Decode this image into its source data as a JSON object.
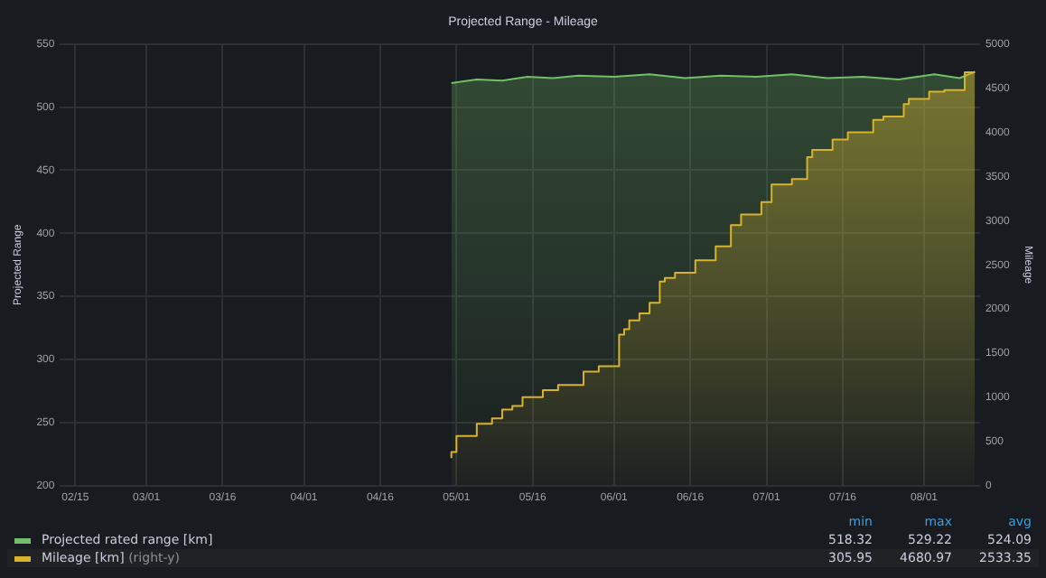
{
  "chart_data": {
    "type": "area",
    "title": "Projected Range - Mileage",
    "ylabel": "Projected Range",
    "y2label": "Mileage",
    "xlim": [
      "--02-12",
      "--08-12"
    ],
    "xticks": [
      {
        "value": "--02-15",
        "label": "02/15"
      },
      {
        "value": "--03-01",
        "label": "03/01"
      },
      {
        "value": "--03-16",
        "label": "03/16"
      },
      {
        "value": "--04-01",
        "label": "04/01"
      },
      {
        "value": "--04-16",
        "label": "04/16"
      },
      {
        "value": "--05-01",
        "label": "05/01"
      },
      {
        "value": "--05-16",
        "label": "05/16"
      },
      {
        "value": "--06-01",
        "label": "06/01"
      },
      {
        "value": "--06-16",
        "label": "06/16"
      },
      {
        "value": "--07-01",
        "label": "07/01"
      },
      {
        "value": "--07-16",
        "label": "07/16"
      },
      {
        "value": "--08-01",
        "label": "08/01"
      }
    ],
    "ylim": [
      200,
      550
    ],
    "yticks": [
      200,
      250,
      300,
      350,
      400,
      450,
      500,
      550
    ],
    "y2lim": [
      0,
      5000
    ],
    "y2ticks": [
      0,
      500,
      1000,
      1500,
      2000,
      2500,
      3000,
      3500,
      4000,
      4500,
      5000
    ],
    "grid": true,
    "legend": "bottom",
    "series": [
      {
        "name": "Projected rated range [km]",
        "color": "#73bf69",
        "x": [
          "--04-30",
          "--05-05",
          "--05-10",
          "--05-15",
          "--05-20",
          "--05-25",
          "--06-01",
          "--06-08",
          "--06-15",
          "--06-22",
          "--06-29",
          "--07-06",
          "--07-13",
          "--07-20",
          "--07-27",
          "--08-03",
          "--08-08",
          "--08-11"
        ],
        "values": [
          519,
          522,
          521,
          524,
          523,
          525,
          524,
          526,
          523,
          525,
          524,
          526,
          523,
          524,
          522,
          526,
          523,
          528
        ]
      },
      {
        "name": "Mileage [km]",
        "color": "#d9b22b",
        "axis": "y2",
        "type": "step",
        "x": [
          "--04-30",
          "--05-01",
          "--05-05",
          "--05-08",
          "--05-10",
          "--05-12",
          "--05-14",
          "--05-18",
          "--05-21",
          "--05-26",
          "--05-29",
          "--06-02",
          "--06-03",
          "--06-04",
          "--06-06",
          "--06-08",
          "--06-10",
          "--06-11",
          "--06-13",
          "--06-17",
          "--06-21",
          "--06-24",
          "--06-26",
          "--06-30",
          "--07-02",
          "--07-06",
          "--07-09",
          "--07-10",
          "--07-14",
          "--07-17",
          "--07-22",
          "--07-24",
          "--07-28",
          "--07-29",
          "--08-02",
          "--08-05",
          "--08-09",
          "--08-11"
        ],
        "values": [
          310,
          380,
          560,
          700,
          760,
          860,
          900,
          1000,
          1080,
          1140,
          1290,
          1350,
          1710,
          1770,
          1870,
          1950,
          2070,
          2310,
          2350,
          2410,
          2550,
          2710,
          2950,
          3070,
          3210,
          3410,
          3470,
          3720,
          3800,
          3920,
          4000,
          4140,
          4180,
          4320,
          4380,
          4460,
          4480,
          4680
        ]
      }
    ],
    "annotations": [
      "min",
      "max",
      "avg",
      "518.32",
      "529.22",
      "524.09",
      "305.95",
      "4680.97",
      "2533.35",
      "(right-y)"
    ]
  }
}
